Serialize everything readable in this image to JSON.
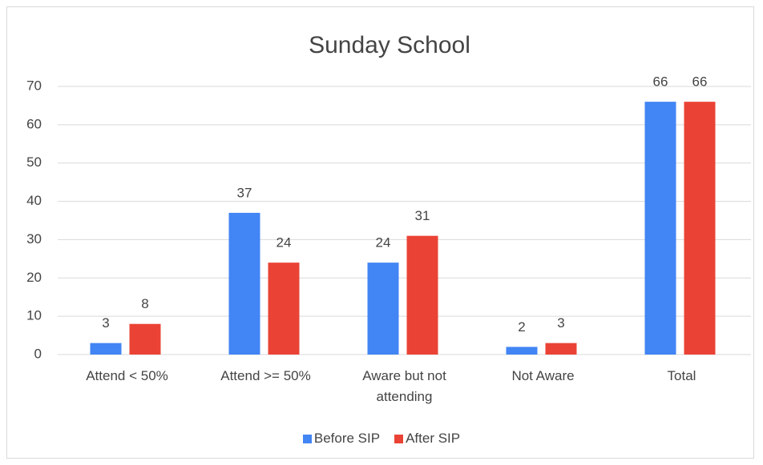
{
  "chart_data": {
    "type": "bar",
    "title": "Sunday School",
    "categories": [
      "Attend < 50%",
      "Attend >= 50%",
      "Aware but not attending",
      "Not Aware",
      "Total"
    ],
    "series": [
      {
        "name": "Before SIP",
        "color": "#4285f4",
        "values": [
          3,
          37,
          24,
          2,
          66
        ]
      },
      {
        "name": "After SIP",
        "color": "#ea4335",
        "values": [
          8,
          24,
          31,
          3,
          66
        ]
      }
    ],
    "ylim": [
      0,
      70
    ],
    "yticks": [
      0,
      10,
      20,
      30,
      40,
      50,
      60,
      70
    ],
    "grid": true,
    "legend": "bottom"
  }
}
